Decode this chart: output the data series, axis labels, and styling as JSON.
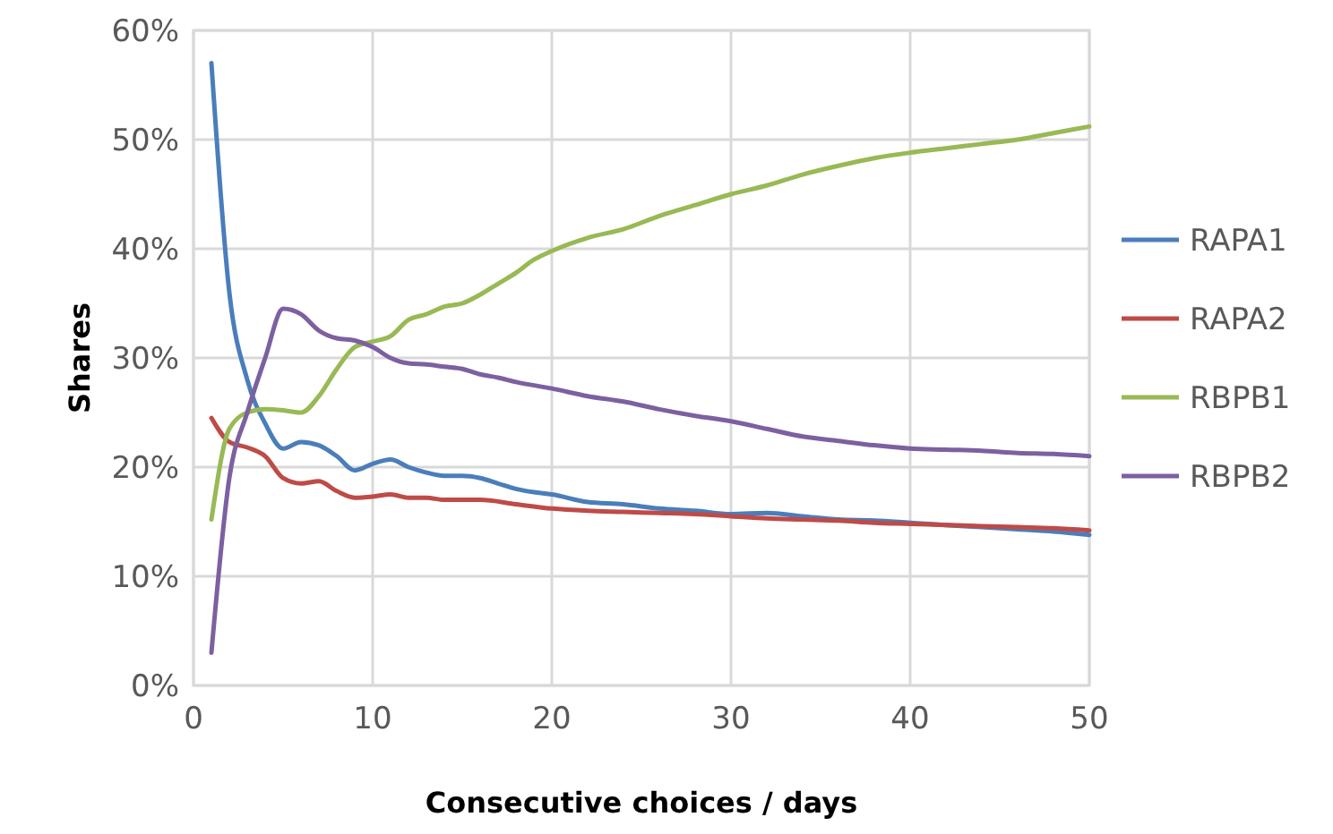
{
  "chart_data": {
    "type": "line",
    "xlabel": "Consecutive choices / days",
    "ylabel": "Shares",
    "xlim": [
      0,
      50
    ],
    "xticks": [
      0,
      10,
      20,
      30,
      40,
      50
    ],
    "ylim": [
      0,
      60
    ],
    "yticks": [
      {
        "value": 0,
        "label": "0%"
      },
      {
        "value": 10,
        "label": "10%"
      },
      {
        "value": 20,
        "label": "20%"
      },
      {
        "value": 30,
        "label": "30%"
      },
      {
        "value": 40,
        "label": "40%"
      },
      {
        "value": 50,
        "label": "50%"
      },
      {
        "value": 60,
        "label": "60%"
      }
    ],
    "grid": true,
    "legend": "right",
    "line_style": "solid",
    "series": [
      {
        "name": "RAPA1",
        "color": "#4a7ebb",
        "x": [
          1,
          2,
          3,
          4,
          5,
          6,
          7,
          8,
          9,
          10,
          11,
          12,
          13,
          14,
          15,
          16,
          17,
          18,
          19,
          20,
          22,
          24,
          26,
          28,
          30,
          32,
          34,
          36,
          38,
          40,
          42,
          44,
          46,
          48,
          50
        ],
        "values": [
          57,
          36,
          28,
          24,
          21.7,
          22.3,
          22,
          21,
          19.7,
          20.3,
          20.7,
          20,
          19.5,
          19.2,
          19.2,
          19,
          18.5,
          18,
          17.7,
          17.5,
          16.8,
          16.6,
          16.2,
          16,
          15.7,
          15.8,
          15.5,
          15.2,
          15.1,
          14.9,
          14.7,
          14.5,
          14.3,
          14.1,
          13.8
        ]
      },
      {
        "name": "RAPA2",
        "color": "#be4b48",
        "x": [
          1,
          2,
          3,
          4,
          5,
          6,
          7,
          8,
          9,
          10,
          11,
          12,
          13,
          14,
          16,
          18,
          20,
          22,
          24,
          26,
          28,
          30,
          32,
          34,
          36,
          38,
          40,
          42,
          44,
          46,
          48,
          50
        ],
        "values": [
          24.5,
          22.3,
          21.8,
          21,
          19,
          18.5,
          18.7,
          17.8,
          17.2,
          17.3,
          17.5,
          17.2,
          17.2,
          17,
          17,
          16.6,
          16.2,
          16,
          15.9,
          15.8,
          15.7,
          15.5,
          15.3,
          15.2,
          15.1,
          14.9,
          14.8,
          14.7,
          14.6,
          14.5,
          14.4,
          14.2
        ]
      },
      {
        "name": "RBPB1",
        "color": "#98b954",
        "x": [
          1,
          2,
          3,
          4,
          5,
          6,
          7,
          8,
          9,
          10,
          11,
          12,
          13,
          14,
          15,
          16,
          17,
          18,
          19,
          20,
          22,
          24,
          26,
          28,
          30,
          32,
          34,
          36,
          38,
          40,
          42,
          44,
          46,
          48,
          50
        ],
        "values": [
          15.2,
          23.5,
          25,
          25.3,
          25.2,
          25,
          26.5,
          29,
          31,
          31.5,
          32,
          33.5,
          34,
          34.7,
          35,
          35.8,
          36.8,
          37.8,
          39,
          39.8,
          41,
          41.8,
          43,
          44,
          45,
          45.8,
          46.8,
          47.6,
          48.3,
          48.8,
          49.2,
          49.6,
          50,
          50.6,
          51.2
        ]
      },
      {
        "name": "RBPB2",
        "color": "#7d60a0",
        "x": [
          1,
          2,
          3,
          4,
          5,
          6,
          7,
          8,
          9,
          10,
          11,
          12,
          13,
          14,
          15,
          16,
          17,
          18,
          20,
          22,
          24,
          26,
          28,
          30,
          32,
          34,
          36,
          38,
          40,
          42,
          44,
          46,
          48,
          50
        ],
        "values": [
          3,
          19,
          25,
          30,
          34.5,
          34,
          32.5,
          31.8,
          31.6,
          31,
          30,
          29.5,
          29.4,
          29.2,
          29,
          28.5,
          28.2,
          27.8,
          27.2,
          26.5,
          26,
          25.3,
          24.7,
          24.2,
          23.5,
          22.8,
          22.4,
          22,
          21.7,
          21.6,
          21.5,
          21.3,
          21.2,
          21
        ]
      }
    ]
  }
}
